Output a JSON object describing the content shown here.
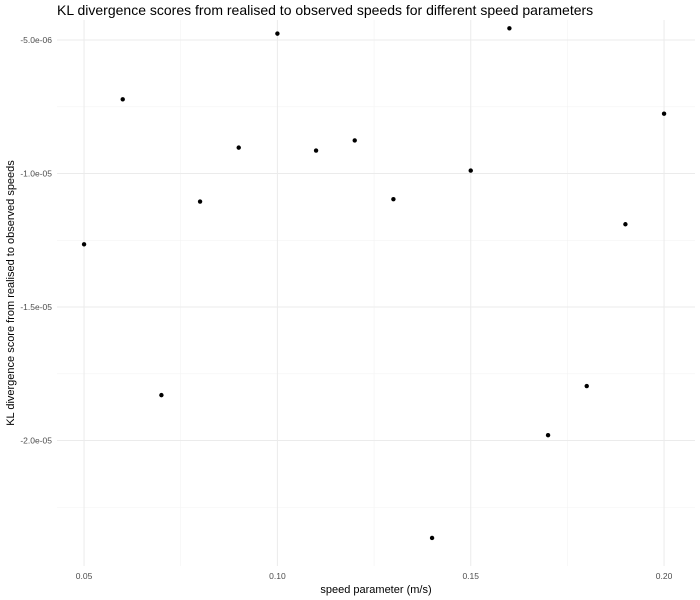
{
  "chart_data": {
    "type": "scatter",
    "title": "KL divergence scores from realised to observed speeds for different speed parameters",
    "xlabel": "speed parameter (m/s)",
    "ylabel": "KL divergence score from realised to observed speeds",
    "xlim": [
      0.043,
      0.208
    ],
    "ylim": [
      -2.47e-05,
      -4.25e-06
    ],
    "x_ticks": [
      0.05,
      0.1,
      0.15,
      0.2
    ],
    "x_tick_labels": [
      "0.05",
      "0.10",
      "0.15",
      "0.20"
    ],
    "y_ticks": [
      -5e-06,
      -1e-05,
      -1.5e-05,
      -2e-05
    ],
    "y_tick_labels": [
      "-5.0e-06",
      "-1.0e-05",
      "-1.5e-05",
      "-2.0e-05"
    ],
    "grid": true,
    "x": [
      0.05,
      0.06,
      0.07,
      0.08,
      0.09,
      0.1,
      0.11,
      0.12,
      0.13,
      0.14,
      0.15,
      0.16,
      0.17,
      0.18,
      0.19,
      0.2
    ],
    "y": [
      -1.265e-05,
      -7.22e-06,
      -1.83e-05,
      -1.105e-05,
      -9.03e-06,
      -4.76e-06,
      -9.14e-06,
      -8.76e-06,
      -1.096e-05,
      -2.365e-05,
      -9.89e-06,
      -4.56e-06,
      -1.98e-05,
      -1.796e-05,
      -1.19e-05,
      -7.76e-06
    ]
  }
}
